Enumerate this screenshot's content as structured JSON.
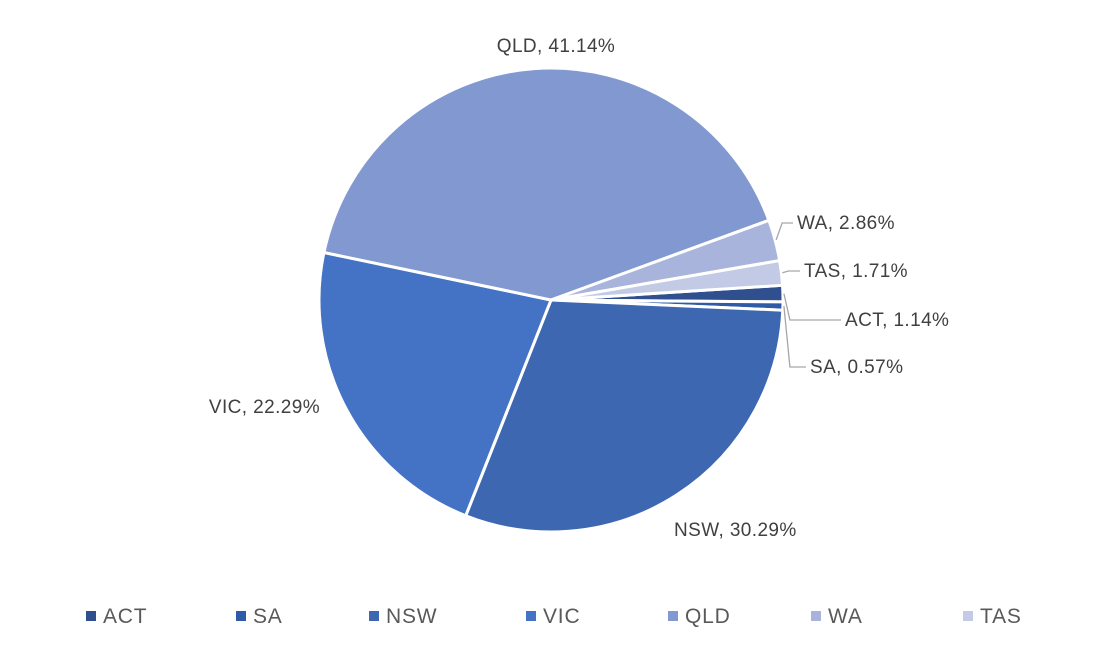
{
  "chart_data": {
    "type": "pie",
    "legend_position": "bottom",
    "slices": [
      {
        "name": "ACT",
        "value": 1.14,
        "label": "ACT, 1.14%",
        "color": "#2f4f8f"
      },
      {
        "name": "SA",
        "value": 0.57,
        "label": "SA, 0.57%",
        "color": "#2f5aa8"
      },
      {
        "name": "NSW",
        "value": 30.29,
        "label": "NSW, 30.29%",
        "color": "#3d67b1"
      },
      {
        "name": "VIC",
        "value": 22.29,
        "label": "VIC, 22.29%",
        "color": "#4472c4"
      },
      {
        "name": "QLD",
        "value": 41.14,
        "label": "QLD, 41.14%",
        "color": "#8298d0"
      },
      {
        "name": "WA",
        "value": 2.86,
        "label": "WA, 2.86%",
        "color": "#a8b4dc"
      },
      {
        "name": "TAS",
        "value": 1.71,
        "label": "TAS, 1.71%",
        "color": "#c3cae6"
      }
    ]
  }
}
